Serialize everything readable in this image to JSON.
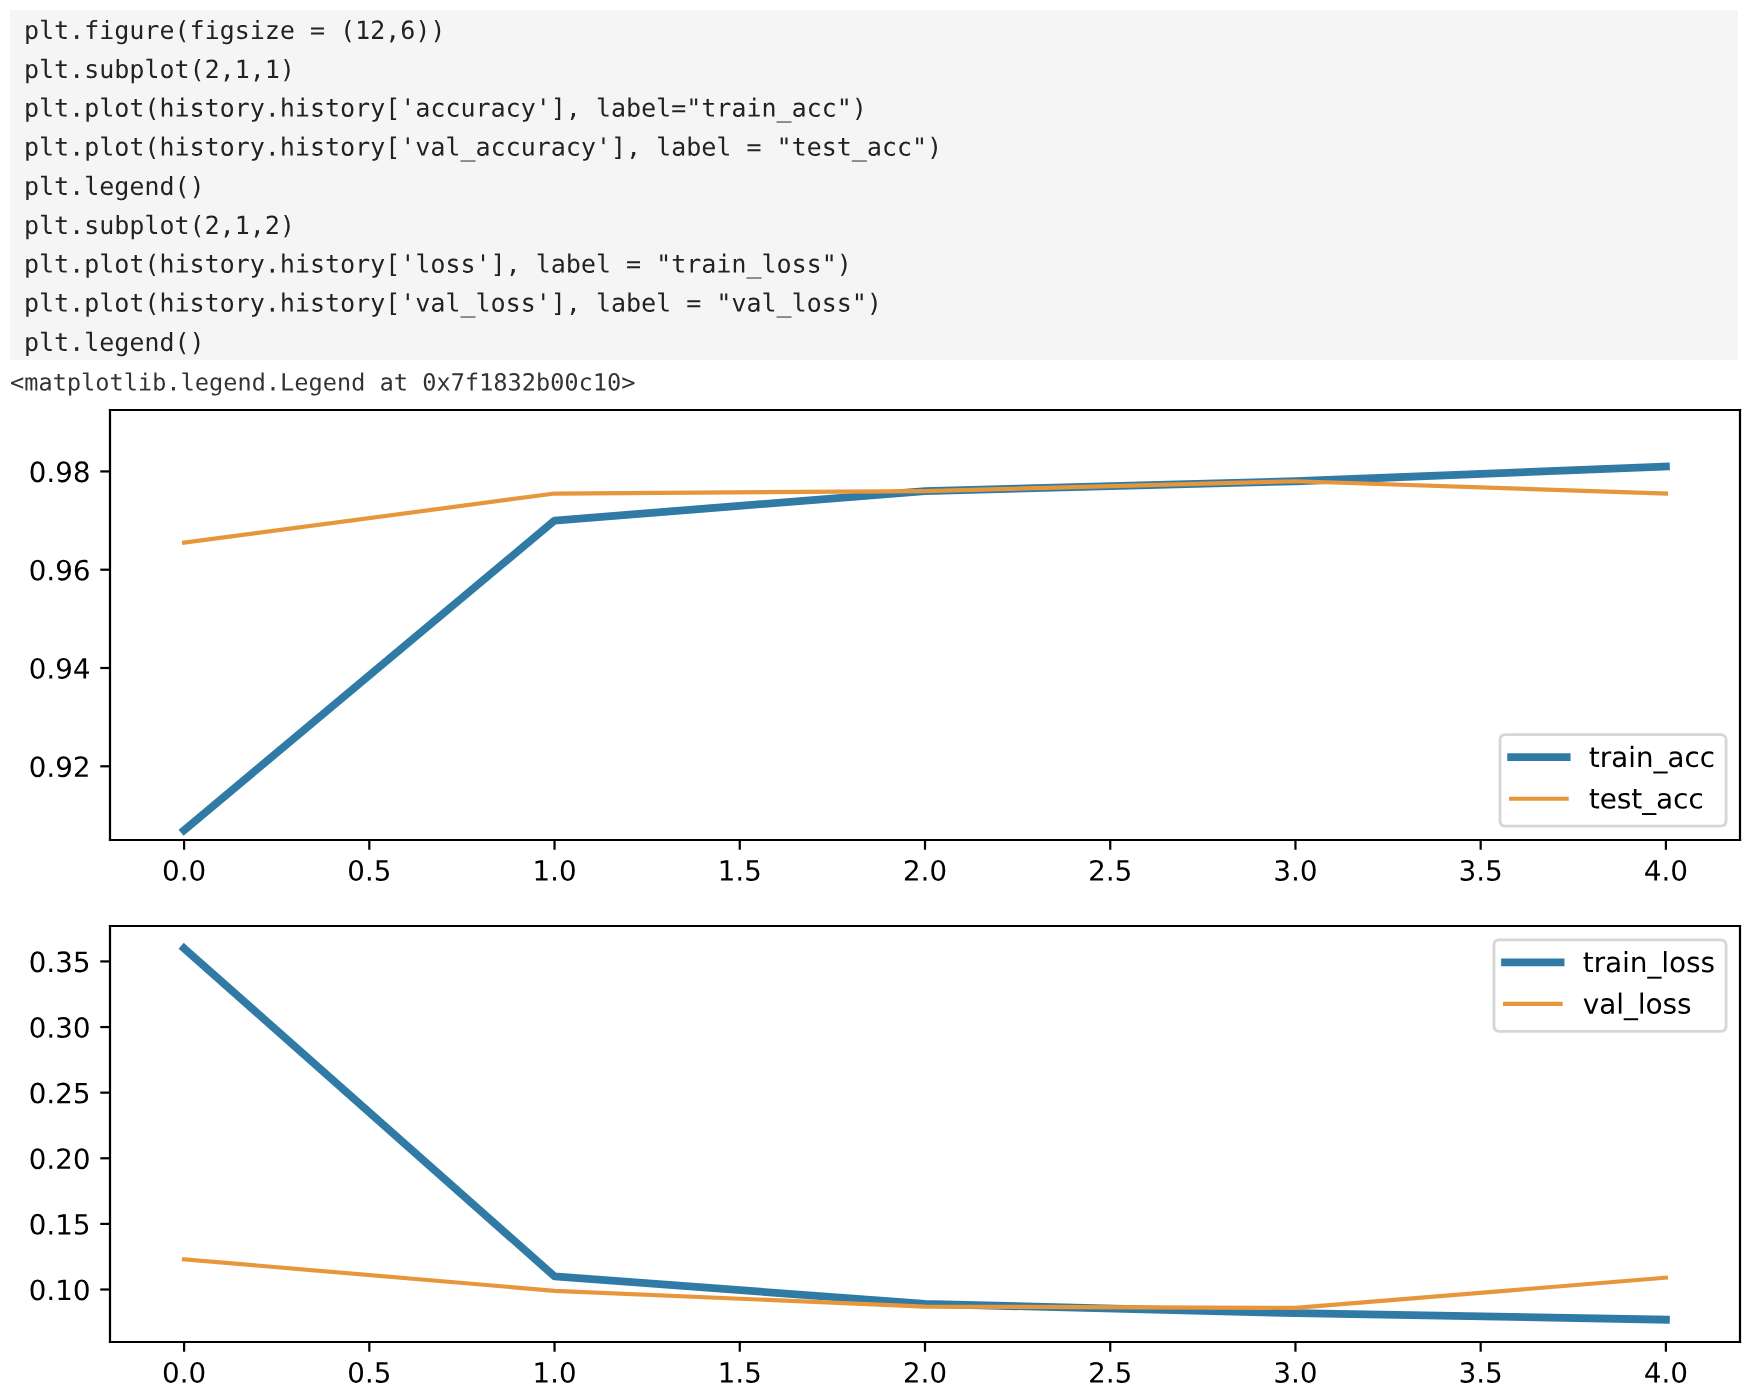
{
  "chart_data": [
    {
      "type": "line",
      "x": [
        0,
        1,
        2,
        3,
        4
      ],
      "xlim": [
        -0.2,
        4.2
      ],
      "xticks": [
        {
          "value": 0,
          "label": "0.0"
        },
        0.5,
        {
          "value": 1,
          "label": "1.0"
        },
        1.5,
        {
          "value": 2,
          "label": "2.0"
        },
        2.5,
        {
          "value": 3,
          "label": "3.0"
        },
        3.5,
        {
          "value": 4,
          "label": "4.0"
        }
      ],
      "ylim": [
        0.905,
        0.9925
      ],
      "yticks": [
        0.92,
        0.94,
        0.96,
        0.98
      ],
      "grid": false,
      "legend": "bottom right",
      "marker": "none",
      "line_style": "solid",
      "annotations": [
        "plt.figure(figsize = (12,6))",
        "plt.subplot(2,1,1)",
        "plt.plot(history.history['accuracy'], label=\"train_acc\")",
        "plt.plot(history.history['val_accuracy'], label = \"test_acc\")",
        "plt.legend()",
        "plt.subplot(2,1,2)",
        "plt.plot(history.history['loss'], label = \"train_loss\")",
        "plt.plot(history.history['val_loss'], label = \"val_loss\")",
        "plt.legend()",
        "<matplotlib.legend.Legend at 0x7f1832b00c10>"
      ],
      "series": [
        {
          "name": "train_acc",
          "color": "#2f7ba6",
          "values": [
            0.907,
            0.97,
            0.976,
            0.978,
            0.981
          ]
        },
        {
          "name": "test_acc",
          "color": "#e8963c",
          "values": [
            0.9655,
            0.9755,
            0.976,
            0.978,
            0.9755
          ]
        }
      ]
    },
    {
      "type": "line",
      "x": [
        0,
        1,
        2,
        3,
        4
      ],
      "xlim": [
        -0.2,
        4.2
      ],
      "xticks": [
        {
          "value": 0,
          "label": "0.0"
        },
        0.5,
        {
          "value": 1,
          "label": "1.0"
        },
        1.5,
        {
          "value": 2,
          "label": "2.0"
        },
        2.5,
        {
          "value": 3,
          "label": "3.0"
        },
        3.5,
        {
          "value": 4,
          "label": "4.0"
        }
      ],
      "ylim": [
        0.06,
        0.377
      ],
      "yticks": [
        {
          "value": 0.1,
          "label": "0.10"
        },
        0.15,
        {
          "value": 0.2,
          "label": "0.20"
        },
        0.25,
        {
          "value": 0.3,
          "label": "0.30"
        },
        0.35
      ],
      "grid": false,
      "legend": "top right",
      "marker": "none",
      "line_style": "solid",
      "series": [
        {
          "name": "train_loss",
          "color": "#2f7ba6",
          "values": [
            0.36,
            0.11,
            0.089,
            0.082,
            0.077
          ]
        },
        {
          "name": "val_loss",
          "color": "#e8963c",
          "values": [
            0.123,
            0.099,
            0.087,
            0.086,
            0.109
          ]
        }
      ]
    }
  ]
}
